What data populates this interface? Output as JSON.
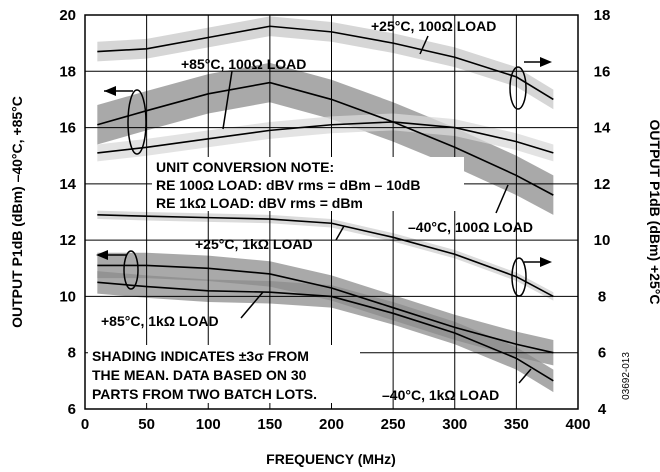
{
  "chart_data": {
    "type": "line",
    "xlabel": "FREQUENCY (MHz)",
    "ylabel_left": "OUTPUT P1dB (dBm) –40°C, +85°C",
    "ylabel_right": "OUTPUT P1dB (dBm) +25°C",
    "xlim": [
      0,
      400
    ],
    "ylim_left": [
      6,
      20
    ],
    "ylim_right": [
      4,
      18
    ],
    "x_ticks": [
      0,
      50,
      100,
      150,
      200,
      250,
      300,
      350,
      400
    ],
    "y_ticks_left": [
      6,
      8,
      10,
      12,
      14,
      16,
      18,
      20
    ],
    "y_ticks_right": [
      4,
      6,
      8,
      10,
      12,
      14,
      16,
      18
    ],
    "grid": true,
    "series": [
      {
        "name": "+25°C, 100Ω LOAD",
        "axis": "right",
        "x": [
          10,
          50,
          100,
          150,
          200,
          250,
          300,
          350,
          380
        ],
        "y": [
          16.7,
          16.8,
          17.2,
          17.6,
          17.4,
          17.0,
          16.5,
          15.8,
          15.0
        ],
        "band": 0.35,
        "band_color": "#c8c8c8"
      },
      {
        "name": "+85°C, 100Ω LOAD",
        "axis": "left",
        "x": [
          10,
          50,
          100,
          150,
          200,
          250,
          300,
          350,
          380
        ],
        "y": [
          16.1,
          16.6,
          17.2,
          17.6,
          17.0,
          16.2,
          15.3,
          14.3,
          13.6
        ],
        "band": 0.7,
        "band_color": "#8c8c8c"
      },
      {
        "name": "–40°C, 100Ω LOAD",
        "axis": "left",
        "x": [
          10,
          50,
          100,
          150,
          200,
          250,
          300,
          350,
          380
        ],
        "y": [
          15.1,
          15.3,
          15.6,
          15.9,
          16.1,
          16.2,
          16.0,
          15.5,
          15.1
        ],
        "band": 0.3,
        "band_color": "#d9d9d9"
      },
      {
        "name": "+25°C, 1kΩ LOAD",
        "axis": "right",
        "x": [
          10,
          50,
          100,
          150,
          200,
          250,
          300,
          350,
          380
        ],
        "y": [
          10.9,
          10.85,
          10.8,
          10.75,
          10.6,
          10.1,
          9.5,
          8.7,
          8.0
        ],
        "band": 0.15,
        "band_color": "#cfcfcf"
      },
      {
        "name": "+85°C, 1kΩ LOAD",
        "axis": "left",
        "x": [
          10,
          50,
          100,
          150,
          200,
          250,
          300,
          350,
          380
        ],
        "y": [
          10.5,
          10.35,
          10.2,
          10.15,
          10.0,
          9.4,
          8.7,
          7.8,
          7.0
        ],
        "band": 0.4,
        "band_color": "#8c8c8c"
      },
      {
        "name": "–40°C, 1kΩ LOAD",
        "axis": "left",
        "x": [
          10,
          50,
          100,
          150,
          200,
          250,
          300,
          350,
          380
        ],
        "y": [
          11.1,
          11.1,
          11.0,
          10.8,
          10.3,
          9.6,
          8.9,
          8.3,
          8.0
        ],
        "band": 0.45,
        "band_color": "#8c8c8c"
      }
    ],
    "annotations": {
      "label_25_100": "+25°C, 100Ω LOAD",
      "label_85_100": "+85°C, 100Ω LOAD",
      "label_m40_100": "–40°C, 100Ω LOAD",
      "label_25_1k": "+25°C, 1kΩ LOAD",
      "label_85_1k": "+85°C, 1kΩ LOAD",
      "label_m40_1k": "–40°C, 1kΩ LOAD",
      "note_line1": "UNIT CONVERSION NOTE:",
      "note_line2": "RE 100Ω LOAD: dBV rms = dBm – 10dB",
      "note_line3": "RE 1kΩ LOAD: dBV rms = dBm",
      "shading_line1": "SHADING INDICATES ±3σ FROM",
      "shading_line2": "THE MEAN. DATA BASED ON 30",
      "shading_line3": "PARTS FROM TWO BATCH LOTS.",
      "figure_id": "03692-013"
    }
  }
}
